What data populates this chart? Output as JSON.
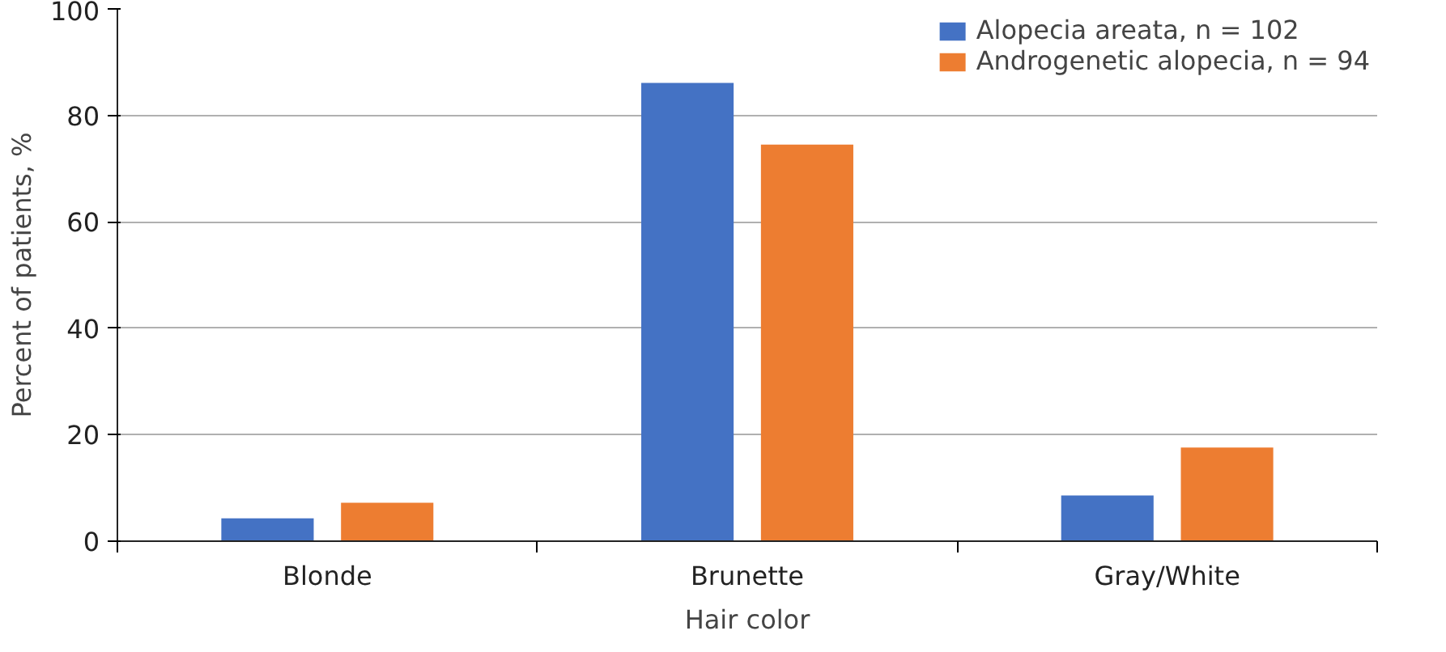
{
  "chart_data": {
    "type": "bar",
    "xlabel": "Hair color",
    "ylabel": "Percent of patients, %",
    "categories": [
      "Blonde",
      "Brunette",
      "Gray/White"
    ],
    "series": [
      {
        "name": "Alopecia areata, n = 102",
        "color": "#4472c4",
        "values": [
          4.3,
          86.1,
          8.6
        ]
      },
      {
        "name": "Androgenetic alopecia, n = 94",
        "color": "#ed7d31",
        "values": [
          7.2,
          74.5,
          17.6
        ]
      }
    ],
    "ylim": [
      0,
      100
    ],
    "yticks": [
      0,
      20,
      40,
      60,
      80,
      100
    ],
    "grid": "y",
    "legend": "top right"
  }
}
